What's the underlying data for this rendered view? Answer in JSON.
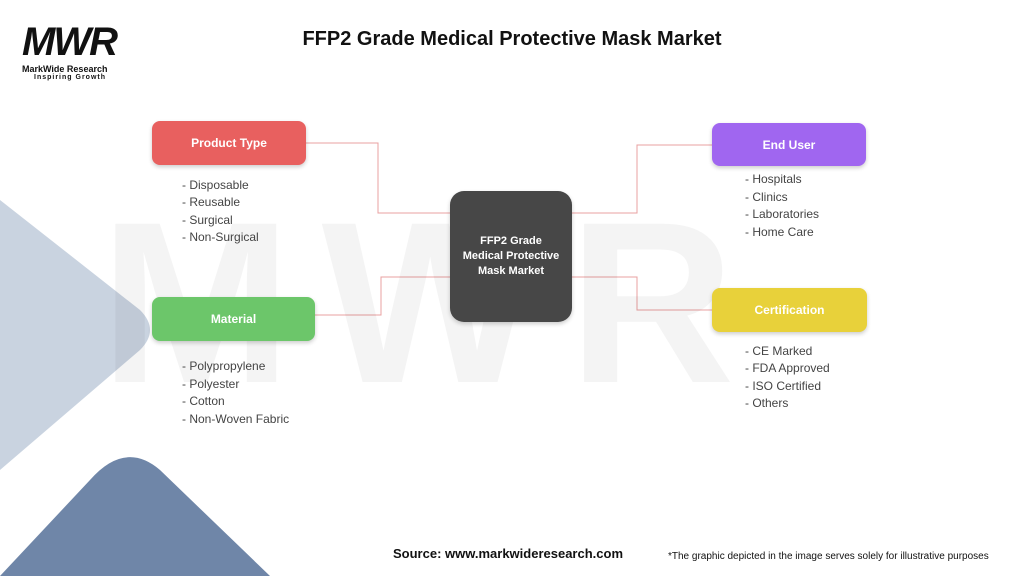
{
  "logo": {
    "mark": "MWR",
    "name": "MarkWide Research",
    "tagline": "Inspiring Growth"
  },
  "header": {
    "title": "FFP2 Grade Medical Protective Mask Market"
  },
  "center": {
    "label": "FFP2 Grade Medical Protective Mask Market"
  },
  "branches": [
    {
      "label": "Product Type",
      "color": "#e8605f",
      "items": [
        "- Disposable",
        "- Reusable",
        "- Surgical",
        "- Non-Surgical"
      ]
    },
    {
      "label": "Material",
      "color": "#6cc66a",
      "items": [
        "- Polypropylene",
        "- Polyester",
        "- Cotton",
        "- Non-Woven Fabric"
      ]
    },
    {
      "label": "End User",
      "color": "#a066f0",
      "items": [
        "- Hospitals",
        "- Clinics",
        "- Laboratories",
        "- Home Care"
      ]
    },
    {
      "label": "Certification",
      "color": "#e8d13a",
      "items": [
        "- CE Marked",
        "- FDA Approved",
        "- ISO Certified",
        "- Others"
      ]
    }
  ],
  "footer": {
    "source": "Source: www.markwideresearch.com",
    "disclaimer": "*The graphic depicted in the image serves solely for illustrative purposes"
  }
}
